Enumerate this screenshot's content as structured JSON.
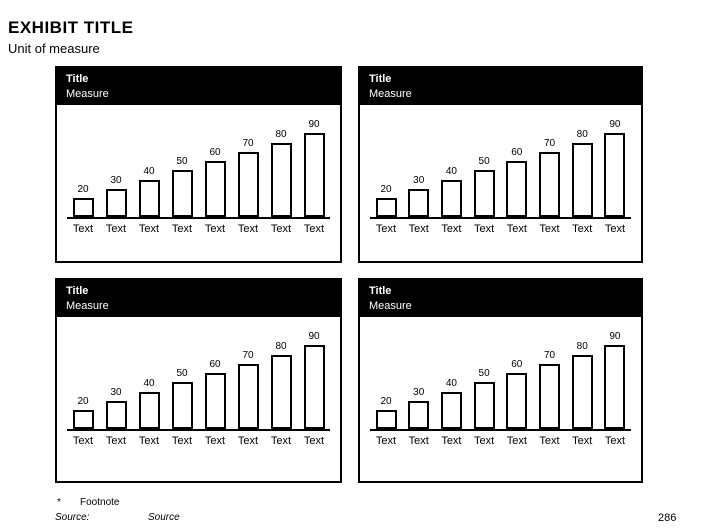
{
  "header": {
    "title": "EXHIBIT TITLE",
    "subtitle": "Unit of measure"
  },
  "chart_data": [
    {
      "type": "bar",
      "position": "top-left",
      "title": "Title",
      "measure_label": "Measure",
      "categories": [
        "Text",
        "Text",
        "Text",
        "Text",
        "Text",
        "Text",
        "Text",
        "Text"
      ],
      "values": [
        20,
        30,
        40,
        50,
        60,
        70,
        80,
        90
      ],
      "value_labels": [
        "20",
        "30",
        "40",
        "50",
        "60",
        "70",
        "80",
        "90"
      ],
      "ylim": [
        0,
        100
      ],
      "grid": false,
      "legend": false,
      "header_bg": "#000000",
      "header_text_color": "#ffffff",
      "bar_fill": "#ffffff",
      "bar_border": "#000000"
    },
    {
      "type": "bar",
      "position": "top-right",
      "title": "Title",
      "measure_label": "Measure",
      "categories": [
        "Text",
        "Text",
        "Text",
        "Text",
        "Text",
        "Text",
        "Text",
        "Text"
      ],
      "values": [
        20,
        30,
        40,
        50,
        60,
        70,
        80,
        90
      ],
      "value_labels": [
        "20",
        "30",
        "40",
        "50",
        "60",
        "70",
        "80",
        "90"
      ],
      "ylim": [
        0,
        100
      ],
      "grid": false,
      "legend": false,
      "header_bg": "#000000",
      "header_text_color": "#ffffff",
      "bar_fill": "#ffffff",
      "bar_border": "#000000"
    },
    {
      "type": "bar",
      "position": "bottom-left",
      "title": "Title",
      "measure_label": "Measure",
      "categories": [
        "Text",
        "Text",
        "Text",
        "Text",
        "Text",
        "Text",
        "Text",
        "Text"
      ],
      "values": [
        20,
        30,
        40,
        50,
        60,
        70,
        80,
        90
      ],
      "value_labels": [
        "20",
        "30",
        "40",
        "50",
        "60",
        "70",
        "80",
        "90"
      ],
      "ylim": [
        0,
        100
      ],
      "grid": false,
      "legend": false,
      "header_bg": "#000000",
      "header_text_color": "#ffffff",
      "bar_fill": "#ffffff",
      "bar_border": "#000000"
    },
    {
      "type": "bar",
      "position": "bottom-right",
      "title": "Title",
      "measure_label": "Measure",
      "categories": [
        "Text",
        "Text",
        "Text",
        "Text",
        "Text",
        "Text",
        "Text",
        "Text"
      ],
      "values": [
        20,
        30,
        40,
        50,
        60,
        70,
        80,
        90
      ],
      "value_labels": [
        "20",
        "30",
        "40",
        "50",
        "60",
        "70",
        "80",
        "90"
      ],
      "ylim": [
        0,
        100
      ],
      "grid": false,
      "legend": false,
      "header_bg": "#000000",
      "header_text_color": "#ffffff",
      "bar_fill": "#ffffff",
      "bar_border": "#000000"
    }
  ],
  "footer": {
    "footnote_marker": "*",
    "footnote_text": "Footnote",
    "source_label": "Source:",
    "source_text": "Source",
    "page_number": "286"
  },
  "colors": {
    "background": "#ffffff",
    "text": "#000000",
    "panel_header_bg": "#000000",
    "panel_header_text": "#ffffff",
    "bar_fill": "#ffffff",
    "bar_outline": "#000000"
  }
}
